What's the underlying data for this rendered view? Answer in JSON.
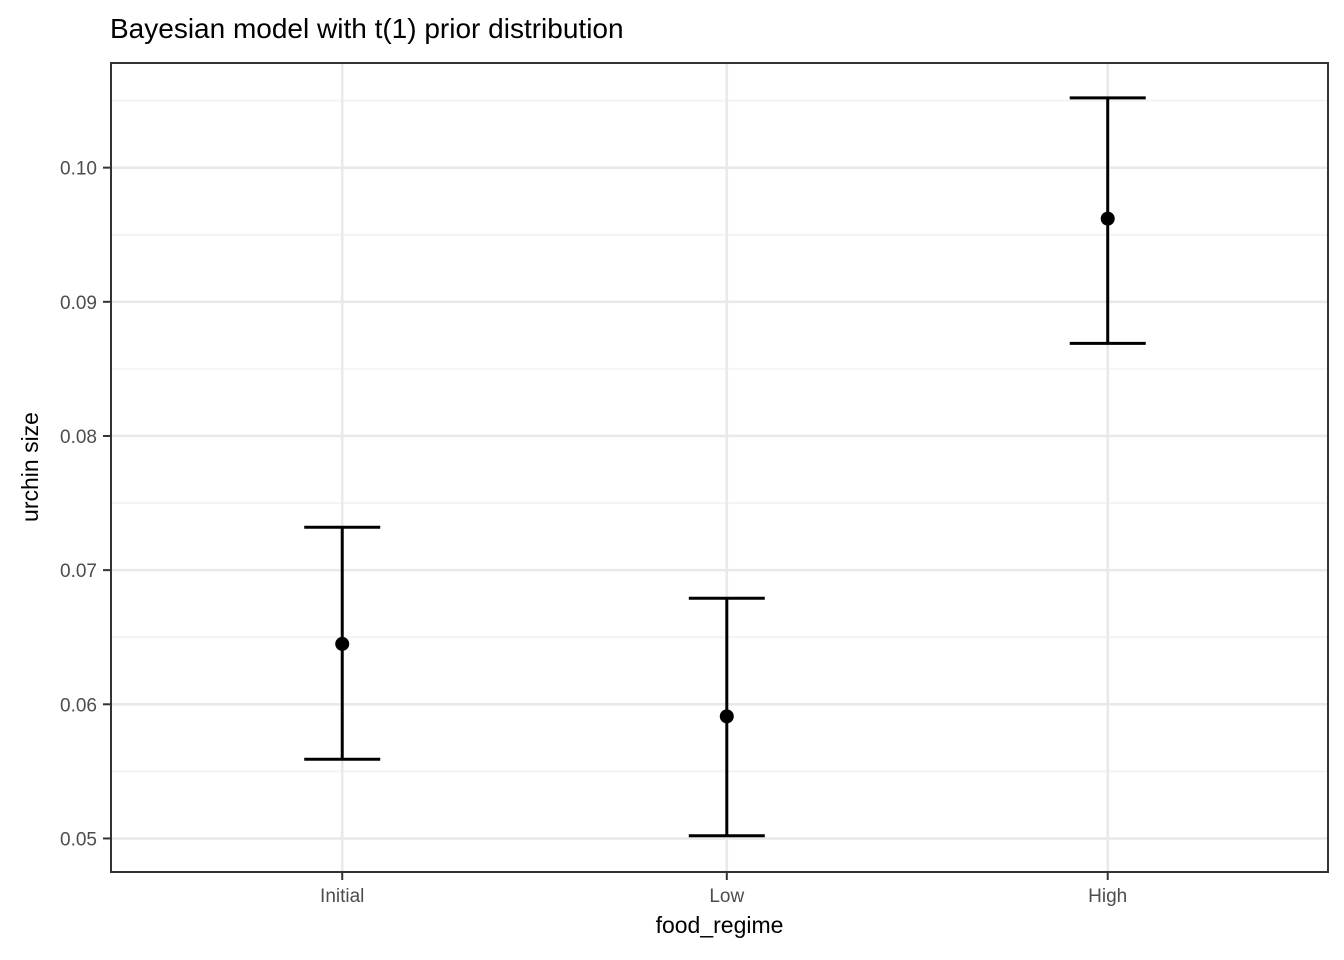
{
  "chart_data": {
    "type": "scatter",
    "title": "Bayesian model with t(1) prior distribution",
    "xlabel": "food_regime",
    "ylabel": "urchin size",
    "categories": [
      "Initial",
      "Low",
      "High"
    ],
    "points": [
      {
        "category": "Initial",
        "mean": 0.0645,
        "lower": 0.0559,
        "upper": 0.0732
      },
      {
        "category": "Low",
        "mean": 0.0591,
        "lower": 0.0502,
        "upper": 0.0679
      },
      {
        "category": "High",
        "mean": 0.0962,
        "lower": 0.0869,
        "upper": 0.1052
      }
    ],
    "y_tick_labels": [
      "0.05",
      "0.06",
      "0.07",
      "0.08",
      "0.09",
      "0.10"
    ],
    "y_tick_values": [
      0.05,
      0.06,
      0.07,
      0.08,
      0.09,
      0.1
    ],
    "y_minor_values": [
      0.055,
      0.065,
      0.075,
      0.085,
      0.095,
      0.105
    ],
    "ylim": [
      0.0475,
      0.1078
    ],
    "grid": true,
    "legend": "none",
    "colors": {
      "point": "#000000",
      "error_bar": "#000000",
      "grid_major": "#e9e9e9",
      "grid_minor": "#f4f4f4",
      "panel_border": "#333333",
      "tick_mark": "#333333",
      "tick_label": "#4d4d4d",
      "axis_title": "#000000",
      "title": "#000000",
      "background": "#ffffff"
    }
  }
}
